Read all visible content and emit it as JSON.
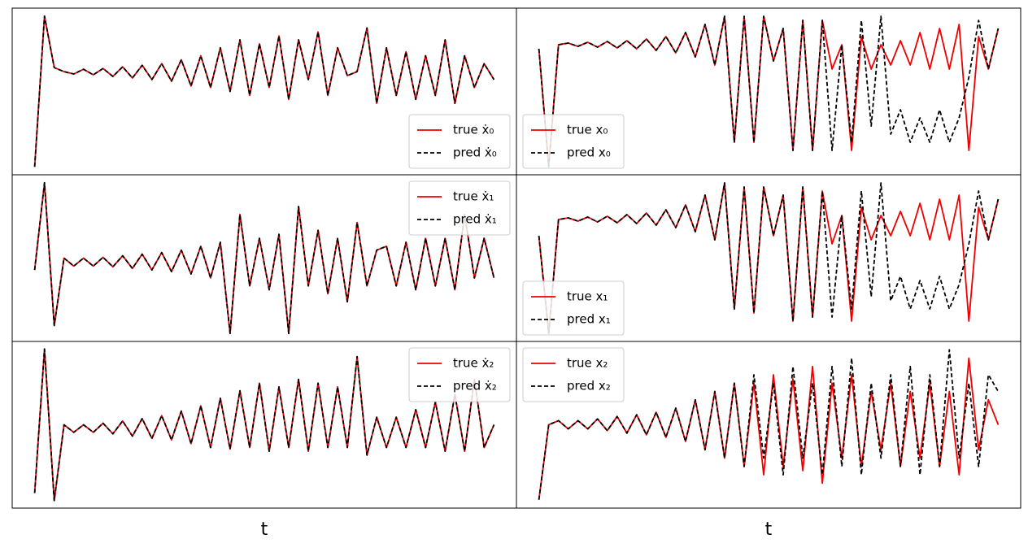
{
  "chart_data": [
    {
      "type": "line",
      "legend": "lower right",
      "xlim": [
        -2.3,
        49.3
      ],
      "ylim": [
        -1,
        1.1
      ],
      "x": [
        0,
        1,
        2,
        3,
        4,
        5,
        6,
        7,
        8,
        9,
        10,
        11,
        12,
        13,
        14,
        15,
        16,
        17,
        18,
        19,
        20,
        21,
        22,
        23,
        24,
        25,
        26,
        27,
        28,
        29,
        30,
        31,
        32,
        33,
        34,
        35,
        36,
        37,
        38,
        39,
        40,
        41,
        42,
        43,
        44,
        45,
        46,
        47
      ],
      "series": [
        {
          "name": "true ẋ₀",
          "color": "#ee0000",
          "values": [
            -0.9,
            1.0,
            0.35,
            0.3,
            0.27,
            0.33,
            0.26,
            0.34,
            0.24,
            0.36,
            0.22,
            0.38,
            0.2,
            0.4,
            0.18,
            0.45,
            0.12,
            0.5,
            0.1,
            0.6,
            0.05,
            0.7,
            0.0,
            0.65,
            0.1,
            0.75,
            -0.05,
            0.7,
            0.2,
            0.8,
            0.0,
            0.6,
            0.25,
            0.3,
            0.85,
            -0.1,
            0.6,
            0.0,
            0.55,
            -0.05,
            0.5,
            0.0,
            0.7,
            -0.1,
            0.5,
            0.1,
            0.4,
            0.2
          ]
        },
        {
          "name": "pred ẋ₀",
          "color": "#000000",
          "dashed": true,
          "values": [
            -0.9,
            1.0,
            0.35,
            0.3,
            0.27,
            0.33,
            0.26,
            0.34,
            0.24,
            0.36,
            0.22,
            0.38,
            0.2,
            0.4,
            0.18,
            0.45,
            0.12,
            0.5,
            0.1,
            0.6,
            0.05,
            0.7,
            0.0,
            0.65,
            0.1,
            0.75,
            -0.05,
            0.7,
            0.2,
            0.8,
            0.0,
            0.6,
            0.25,
            0.3,
            0.85,
            -0.1,
            0.6,
            0.0,
            0.55,
            -0.05,
            0.5,
            0.0,
            0.7,
            -0.1,
            0.5,
            0.1,
            0.4,
            0.2
          ]
        }
      ]
    },
    {
      "type": "line",
      "legend": "lower left",
      "xlim": [
        -2.3,
        49.3
      ],
      "ylim": [
        -1,
        1.05
      ],
      "x": [
        0,
        1,
        2,
        3,
        4,
        5,
        6,
        7,
        8,
        9,
        10,
        11,
        12,
        13,
        14,
        15,
        16,
        17,
        18,
        19,
        20,
        21,
        22,
        23,
        24,
        25,
        26,
        27,
        28,
        29,
        30,
        31,
        32,
        33,
        34,
        35,
        36,
        37,
        38,
        39,
        40,
        41,
        42,
        43,
        44,
        45,
        46,
        47
      ],
      "series": [
        {
          "name": "true x₀",
          "color": "#ee0000",
          "values": [
            0.55,
            -0.9,
            0.6,
            0.62,
            0.58,
            0.63,
            0.57,
            0.64,
            0.56,
            0.65,
            0.55,
            0.67,
            0.53,
            0.7,
            0.5,
            0.75,
            0.45,
            0.85,
            0.35,
            0.95,
            -0.6,
            0.95,
            -0.6,
            0.95,
            0.4,
            0.8,
            -0.7,
            0.9,
            -0.7,
            0.9,
            0.3,
            0.6,
            -0.7,
            0.7,
            0.3,
            0.6,
            0.35,
            0.65,
            0.35,
            0.75,
            0.3,
            0.8,
            0.3,
            0.85,
            -0.7,
            0.7,
            0.3,
            0.8
          ]
        },
        {
          "name": "pred x₀",
          "color": "#000000",
          "dashed": true,
          "values": [
            0.55,
            -0.9,
            0.6,
            0.62,
            0.58,
            0.63,
            0.57,
            0.64,
            0.56,
            0.65,
            0.55,
            0.67,
            0.53,
            0.7,
            0.5,
            0.75,
            0.45,
            0.85,
            0.35,
            0.95,
            -0.6,
            0.95,
            -0.6,
            0.95,
            0.4,
            0.8,
            -0.7,
            0.9,
            -0.7,
            0.9,
            -0.7,
            0.6,
            -0.6,
            0.9,
            -0.4,
            0.95,
            -0.5,
            -0.2,
            -0.6,
            -0.3,
            -0.6,
            -0.2,
            -0.6,
            -0.3,
            0.2,
            0.9,
            0.3,
            0.8
          ]
        }
      ]
    },
    {
      "type": "line",
      "legend": "upper right",
      "xlim": [
        -2.3,
        49.3
      ],
      "ylim": [
        -1,
        1.1
      ],
      "x": [
        0,
        1,
        2,
        3,
        4,
        5,
        6,
        7,
        8,
        9,
        10,
        11,
        12,
        13,
        14,
        15,
        16,
        17,
        18,
        19,
        20,
        21,
        22,
        23,
        24,
        25,
        26,
        27,
        28,
        29,
        30,
        31,
        32,
        33,
        34,
        35,
        36,
        37,
        38,
        39,
        40,
        41,
        42,
        43,
        44,
        45,
        46,
        47
      ],
      "series": [
        {
          "name": "true ẋ₁",
          "color": "#ee0000",
          "values": [
            -0.1,
            1.0,
            -0.8,
            0.05,
            -0.05,
            0.05,
            -0.05,
            0.06,
            -0.06,
            0.08,
            -0.08,
            0.1,
            -0.1,
            0.12,
            -0.12,
            0.15,
            -0.15,
            0.2,
            -0.2,
            0.25,
            -0.9,
            0.6,
            -0.3,
            0.3,
            -0.35,
            0.35,
            -0.9,
            0.7,
            -0.3,
            0.4,
            -0.4,
            0.3,
            -0.5,
            0.5,
            -0.3,
            0.15,
            0.2,
            -0.3,
            0.25,
            -0.35,
            0.3,
            -0.3,
            0.3,
            -0.35,
            0.6,
            -0.2,
            0.3,
            -0.2
          ]
        },
        {
          "name": "pred ẋ₁",
          "color": "#000000",
          "dashed": true,
          "values": [
            -0.1,
            1.0,
            -0.8,
            0.05,
            -0.05,
            0.05,
            -0.05,
            0.06,
            -0.06,
            0.08,
            -0.08,
            0.1,
            -0.1,
            0.12,
            -0.12,
            0.15,
            -0.15,
            0.2,
            -0.2,
            0.25,
            -0.9,
            0.6,
            -0.3,
            0.3,
            -0.35,
            0.35,
            -0.9,
            0.7,
            -0.3,
            0.4,
            -0.4,
            0.3,
            -0.5,
            0.5,
            -0.3,
            0.15,
            0.2,
            -0.3,
            0.25,
            -0.35,
            0.3,
            -0.3,
            0.3,
            -0.35,
            0.6,
            -0.2,
            0.3,
            -0.2
          ]
        }
      ]
    },
    {
      "type": "line",
      "legend": "lower left",
      "xlim": [
        -2.3,
        49.3
      ],
      "ylim": [
        -1,
        1.05
      ],
      "x": [
        0,
        1,
        2,
        3,
        4,
        5,
        6,
        7,
        8,
        9,
        10,
        11,
        12,
        13,
        14,
        15,
        16,
        17,
        18,
        19,
        20,
        21,
        22,
        23,
        24,
        25,
        26,
        27,
        28,
        29,
        30,
        31,
        32,
        33,
        34,
        35,
        36,
        37,
        38,
        39,
        40,
        41,
        42,
        43,
        44,
        45,
        46,
        47
      ],
      "series": [
        {
          "name": "true x₁",
          "color": "#ee0000",
          "values": [
            0.3,
            -0.9,
            0.5,
            0.52,
            0.48,
            0.53,
            0.47,
            0.54,
            0.46,
            0.56,
            0.45,
            0.58,
            0.43,
            0.62,
            0.4,
            0.68,
            0.35,
            0.8,
            0.25,
            0.95,
            -0.6,
            0.9,
            -0.65,
            0.9,
            0.3,
            0.8,
            -0.75,
            0.9,
            -0.7,
            0.85,
            0.2,
            0.55,
            -0.75,
            0.65,
            0.25,
            0.55,
            0.3,
            0.6,
            0.3,
            0.7,
            0.25,
            0.75,
            0.25,
            0.8,
            -0.75,
            0.65,
            0.25,
            0.75
          ]
        },
        {
          "name": "pred x₁",
          "color": "#000000",
          "dashed": true,
          "values": [
            0.3,
            -0.9,
            0.5,
            0.52,
            0.48,
            0.53,
            0.47,
            0.54,
            0.46,
            0.56,
            0.45,
            0.58,
            0.43,
            0.62,
            0.4,
            0.68,
            0.35,
            0.8,
            0.25,
            0.95,
            -0.6,
            0.9,
            -0.65,
            0.9,
            0.3,
            0.8,
            -0.75,
            0.9,
            -0.7,
            0.85,
            -0.7,
            0.55,
            -0.6,
            0.85,
            -0.45,
            0.95,
            -0.5,
            -0.2,
            -0.6,
            -0.25,
            -0.6,
            -0.2,
            -0.6,
            -0.3,
            0.2,
            0.85,
            0.25,
            0.75
          ]
        }
      ]
    },
    {
      "type": "line",
      "legend": "upper right",
      "xlabel": "t",
      "xlim": [
        -2.3,
        49.3
      ],
      "ylim": [
        -1.1,
        1.1
      ],
      "x": [
        0,
        1,
        2,
        3,
        4,
        5,
        6,
        7,
        8,
        9,
        10,
        11,
        12,
        13,
        14,
        15,
        16,
        17,
        18,
        19,
        20,
        21,
        22,
        23,
        24,
        25,
        26,
        27,
        28,
        29,
        30,
        31,
        32,
        33,
        34,
        35,
        36,
        37,
        38,
        39,
        40,
        41,
        42,
        43,
        44,
        45,
        46,
        47
      ],
      "series": [
        {
          "name": "true ẋ₂",
          "color": "#ee0000",
          "values": [
            -0.9,
            1.0,
            -1.0,
            0.0,
            -0.1,
            0.0,
            -0.1,
            0.02,
            -0.12,
            0.05,
            -0.15,
            0.08,
            -0.18,
            0.12,
            -0.2,
            0.18,
            -0.25,
            0.25,
            -0.3,
            0.35,
            -0.32,
            0.45,
            -0.3,
            0.55,
            -0.35,
            0.5,
            -0.3,
            0.6,
            -0.35,
            0.55,
            -0.3,
            0.5,
            -0.3,
            0.9,
            -0.4,
            0.1,
            -0.3,
            0.1,
            -0.3,
            0.2,
            -0.3,
            0.3,
            -0.35,
            0.4,
            -0.35,
            0.6,
            -0.3,
            0.0
          ]
        },
        {
          "name": "pred ẋ₂",
          "color": "#000000",
          "dashed": true,
          "values": [
            -0.9,
            1.0,
            -1.0,
            0.0,
            -0.1,
            0.0,
            -0.1,
            0.02,
            -0.12,
            0.05,
            -0.15,
            0.08,
            -0.18,
            0.12,
            -0.2,
            0.18,
            -0.25,
            0.25,
            -0.3,
            0.35,
            -0.32,
            0.45,
            -0.3,
            0.55,
            -0.35,
            0.5,
            -0.3,
            0.6,
            -0.35,
            0.55,
            -0.3,
            0.5,
            -0.3,
            0.9,
            -0.4,
            0.1,
            -0.3,
            0.1,
            -0.3,
            0.2,
            -0.3,
            0.3,
            -0.35,
            0.4,
            -0.35,
            0.6,
            -0.3,
            0.0
          ]
        }
      ]
    },
    {
      "type": "line",
      "legend": "upper left",
      "xlabel": "t",
      "xlim": [
        -2.3,
        49.3
      ],
      "ylim": [
        -1,
        1
      ],
      "x": [
        0,
        1,
        2,
        3,
        4,
        5,
        6,
        7,
        8,
        9,
        10,
        11,
        12,
        13,
        14,
        15,
        16,
        17,
        18,
        19,
        20,
        21,
        22,
        23,
        24,
        25,
        26,
        27,
        28,
        29,
        30,
        31,
        32,
        33,
        34,
        35,
        36,
        37,
        38,
        39,
        40,
        41,
        42,
        43,
        44,
        45,
        46,
        47
      ],
      "series": [
        {
          "name": "true x₂",
          "color": "#ee0000",
          "values": [
            -0.9,
            0.0,
            0.05,
            -0.05,
            0.05,
            -0.05,
            0.07,
            -0.07,
            0.1,
            -0.1,
            0.12,
            -0.12,
            0.15,
            -0.15,
            0.2,
            -0.2,
            0.3,
            -0.3,
            0.4,
            -0.4,
            0.5,
            -0.5,
            0.5,
            -0.6,
            0.6,
            -0.5,
            0.55,
            -0.55,
            0.7,
            -0.7,
            0.5,
            -0.4,
            0.6,
            -0.5,
            0.4,
            -0.3,
            0.5,
            -0.5,
            0.4,
            -0.4,
            0.5,
            -0.5,
            0.4,
            -0.6,
            0.8,
            -0.3,
            0.3,
            0.0
          ]
        },
        {
          "name": "pred x₂",
          "color": "#000000",
          "dashed": true,
          "values": [
            -0.9,
            0.0,
            0.05,
            -0.05,
            0.05,
            -0.05,
            0.07,
            -0.07,
            0.1,
            -0.1,
            0.12,
            -0.12,
            0.15,
            -0.15,
            0.2,
            -0.2,
            0.3,
            -0.3,
            0.4,
            -0.4,
            0.5,
            -0.5,
            0.6,
            -0.4,
            0.5,
            -0.6,
            0.7,
            -0.4,
            0.5,
            -0.6,
            0.7,
            -0.5,
            0.8,
            -0.6,
            0.5,
            -0.4,
            0.6,
            -0.5,
            0.7,
            -0.6,
            0.6,
            -0.5,
            0.9,
            -0.4,
            0.5,
            -0.5,
            0.6,
            0.4
          ]
        }
      ]
    }
  ]
}
